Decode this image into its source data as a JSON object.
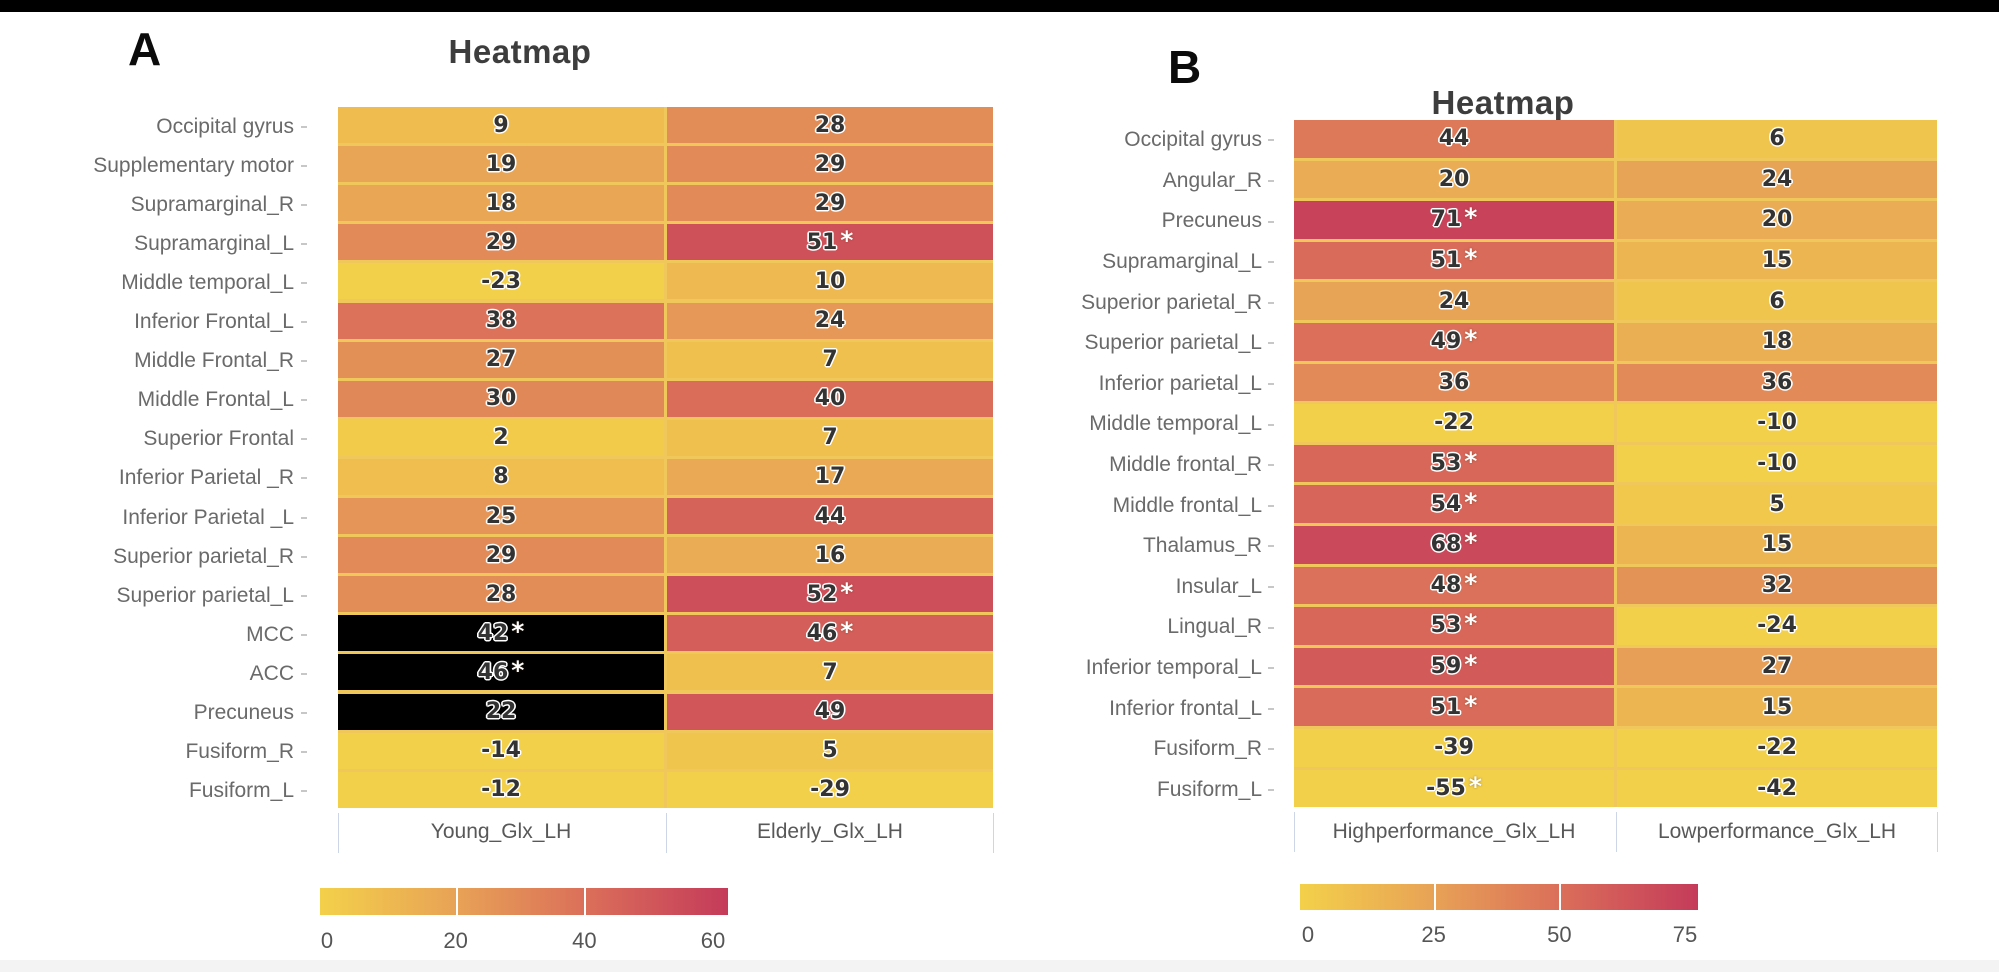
{
  "page": {
    "background": "#ffffff",
    "top_bar_color": "#000000",
    "bottom_bar_color": "#f3f3f3"
  },
  "style": {
    "gap_color": "#efc75b",
    "highlight_cell_color": "#000000",
    "value_text_color": "#333333",
    "significance_marker": "*",
    "colormap_stops": [
      [
        0,
        "#f3d04a"
      ],
      [
        0.33,
        "#e8a356"
      ],
      [
        0.67,
        "#da6c5a"
      ],
      [
        1,
        "#c43b5a"
      ]
    ]
  },
  "chart_data": [
    {
      "type": "heatmap",
      "panel_label": "A",
      "title": "Heatmap",
      "columns": [
        "Young_Glx_LH",
        "Elderly_Glx_LH"
      ],
      "rows": [
        {
          "label": "Occipital gyrus",
          "cells": [
            {
              "v": 9
            },
            {
              "v": 28
            }
          ]
        },
        {
          "label": "Supplementary motor",
          "cells": [
            {
              "v": 19
            },
            {
              "v": 29
            }
          ]
        },
        {
          "label": "Supramarginal_R",
          "cells": [
            {
              "v": 18
            },
            {
              "v": 29
            }
          ]
        },
        {
          "label": "Supramarginal_L",
          "cells": [
            {
              "v": 29
            },
            {
              "v": 51,
              "sig": true
            }
          ]
        },
        {
          "label": "Middle temporal_L",
          "cells": [
            {
              "v": -23
            },
            {
              "v": 10
            }
          ]
        },
        {
          "label": "Inferior Frontal_L",
          "cells": [
            {
              "v": 38
            },
            {
              "v": 24
            }
          ]
        },
        {
          "label": "Middle Frontal_R",
          "cells": [
            {
              "v": 27
            },
            {
              "v": 7
            }
          ]
        },
        {
          "label": "Middle Frontal_L",
          "cells": [
            {
              "v": 30
            },
            {
              "v": 40
            }
          ]
        },
        {
          "label": "Superior Frontal",
          "cells": [
            {
              "v": 2
            },
            {
              "v": 7
            }
          ]
        },
        {
          "label": "Inferior Parietal _R",
          "cells": [
            {
              "v": 8
            },
            {
              "v": 17
            }
          ]
        },
        {
          "label": "Inferior Parietal _L",
          "cells": [
            {
              "v": 25
            },
            {
              "v": 44
            }
          ]
        },
        {
          "label": "Superior parietal_R",
          "cells": [
            {
              "v": 29
            },
            {
              "v": 16
            }
          ]
        },
        {
          "label": "Superior parietal_L",
          "cells": [
            {
              "v": 28
            },
            {
              "v": 52,
              "sig": true
            }
          ]
        },
        {
          "label": "MCC",
          "cells": [
            {
              "v": 42,
              "sig": true,
              "black": true
            },
            {
              "v": 46,
              "sig": true
            }
          ]
        },
        {
          "label": "ACC",
          "cells": [
            {
              "v": 46,
              "sig": true,
              "black": true
            },
            {
              "v": 7
            }
          ]
        },
        {
          "label": "Precuneus",
          "cells": [
            {
              "v": 22,
              "black": true
            },
            {
              "v": 49
            }
          ]
        },
        {
          "label": "Fusiform_R",
          "cells": [
            {
              "v": -14
            },
            {
              "v": 5
            }
          ]
        },
        {
          "label": "Fusiform_L",
          "cells": [
            {
              "v": -12
            },
            {
              "v": -29
            }
          ]
        }
      ],
      "colorbar": {
        "min": 0,
        "max": 60,
        "ticks": [
          0,
          20,
          40,
          60
        ]
      }
    },
    {
      "type": "heatmap",
      "panel_label": "B",
      "title": "Heatmap",
      "columns": [
        "Highperformance_Glx_LH",
        "Lowperformance_Glx_LH"
      ],
      "rows": [
        {
          "label": "Occipital gyrus",
          "cells": [
            {
              "v": 44
            },
            {
              "v": 6
            }
          ]
        },
        {
          "label": "Angular_R",
          "cells": [
            {
              "v": 20
            },
            {
              "v": 24
            }
          ]
        },
        {
          "label": "Precuneus",
          "cells": [
            {
              "v": 71,
              "sig": true
            },
            {
              "v": 20
            }
          ]
        },
        {
          "label": "Supramarginal_L",
          "cells": [
            {
              "v": 51,
              "sig": true
            },
            {
              "v": 15
            }
          ]
        },
        {
          "label": "Superior parietal_R",
          "cells": [
            {
              "v": 24
            },
            {
              "v": 6
            }
          ]
        },
        {
          "label": "Superior parietal_L",
          "cells": [
            {
              "v": 49,
              "sig": true
            },
            {
              "v": 18
            }
          ]
        },
        {
          "label": "Inferior parietal_L",
          "cells": [
            {
              "v": 36
            },
            {
              "v": 36
            }
          ]
        },
        {
          "label": "Middle temporal_L",
          "cells": [
            {
              "v": -22
            },
            {
              "v": -10
            }
          ]
        },
        {
          "label": "Middle frontal_R",
          "cells": [
            {
              "v": 53,
              "sig": true
            },
            {
              "v": -10
            }
          ]
        },
        {
          "label": "Middle frontal_L",
          "cells": [
            {
              "v": 54,
              "sig": true
            },
            {
              "v": 5
            }
          ]
        },
        {
          "label": "Thalamus_R",
          "cells": [
            {
              "v": 68,
              "sig": true
            },
            {
              "v": 15
            }
          ]
        },
        {
          "label": "Insular_L",
          "cells": [
            {
              "v": 48,
              "sig": true
            },
            {
              "v": 32
            }
          ]
        },
        {
          "label": "Lingual_R",
          "cells": [
            {
              "v": 53,
              "sig": true
            },
            {
              "v": -24
            }
          ]
        },
        {
          "label": "Inferior temporal_L",
          "cells": [
            {
              "v": 59,
              "sig": true
            },
            {
              "v": 27
            }
          ]
        },
        {
          "label": "Inferior frontal_L",
          "cells": [
            {
              "v": 51,
              "sig": true
            },
            {
              "v": 15
            }
          ]
        },
        {
          "label": "Fusiform_R",
          "cells": [
            {
              "v": -39
            },
            {
              "v": -22
            }
          ]
        },
        {
          "label": "Fusiform_L",
          "cells": [
            {
              "v": -55,
              "sig": true
            },
            {
              "v": -42
            }
          ]
        }
      ],
      "colorbar": {
        "min": 0,
        "max": 75,
        "ticks": [
          0,
          25,
          50,
          75
        ]
      }
    }
  ]
}
